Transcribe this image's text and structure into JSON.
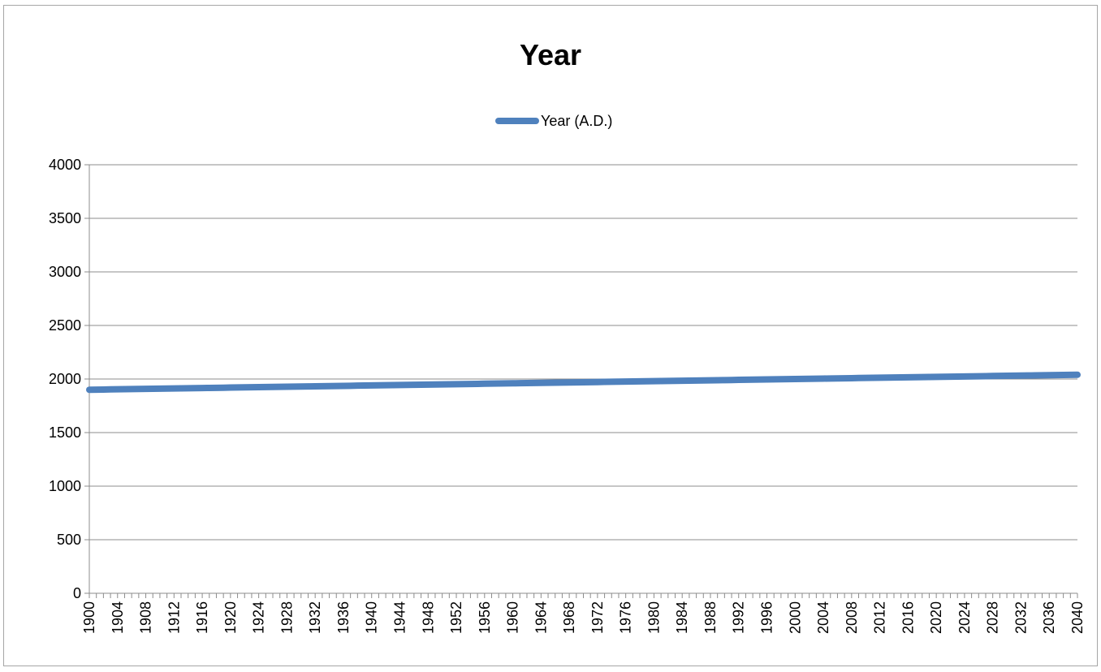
{
  "chart_data": {
    "type": "line",
    "title": "Year",
    "xlabel": "",
    "ylabel": "",
    "ylim": [
      0,
      4000
    ],
    "yticks": [
      0,
      500,
      1000,
      1500,
      2000,
      2500,
      3000,
      3500,
      4000
    ],
    "xlim": [
      1900,
      2040
    ],
    "xtick_labels": [
      1900,
      1904,
      1908,
      1912,
      1916,
      1920,
      1924,
      1928,
      1932,
      1936,
      1940,
      1944,
      1948,
      1952,
      1956,
      1960,
      1964,
      1968,
      1972,
      1976,
      1980,
      1984,
      1988,
      1992,
      1996,
      2000,
      2004,
      2008,
      2012,
      2016,
      2020,
      2024,
      2028,
      2032,
      2036,
      2040
    ],
    "grid": true,
    "legend_position": "top",
    "series": [
      {
        "name": "Year (A.D.)",
        "color": "#4f81bd",
        "x_start": 1900,
        "x_end": 2040,
        "x_step": 1,
        "y_equals_x": true
      }
    ]
  }
}
